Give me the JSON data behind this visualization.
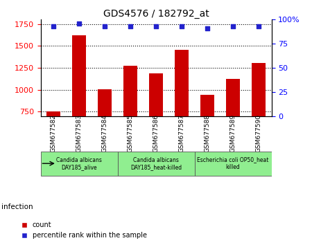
{
  "title": "GDS4576 / 182792_at",
  "samples": [
    "GSM677582",
    "GSM677583",
    "GSM677584",
    "GSM677585",
    "GSM677586",
    "GSM677587",
    "GSM677588",
    "GSM677589",
    "GSM677590"
  ],
  "counts": [
    753,
    1625,
    1005,
    1275,
    1185,
    1455,
    945,
    1125,
    1305
  ],
  "percentile_ranks": [
    93,
    96,
    93,
    93,
    93,
    93,
    91,
    93,
    93
  ],
  "ylim_left": [
    700,
    1800
  ],
  "ylim_right": [
    0,
    100
  ],
  "yticks_left": [
    750,
    1000,
    1250,
    1500,
    1750
  ],
  "yticks_right": [
    0,
    25,
    50,
    75,
    100
  ],
  "bar_color": "#cc0000",
  "dot_color": "#2222cc",
  "groups": [
    {
      "label": "Candida albicans\nDAY185_alive",
      "start": 0,
      "end": 3,
      "color": "#90ee90"
    },
    {
      "label": "Candida albicans\nDAY185_heat-killed",
      "start": 3,
      "end": 6,
      "color": "#90ee90"
    },
    {
      "label": "Escherichia coli OP50_heat\nkilled",
      "start": 6,
      "end": 9,
      "color": "#90ee90"
    }
  ],
  "infection_label": "infection",
  "legend_count_label": "count",
  "legend_percentile_label": "percentile rank within the sample",
  "sample_bg_color": "#d3d3d3",
  "plot_bg_color": "#ffffff",
  "bar_bottom": 700
}
